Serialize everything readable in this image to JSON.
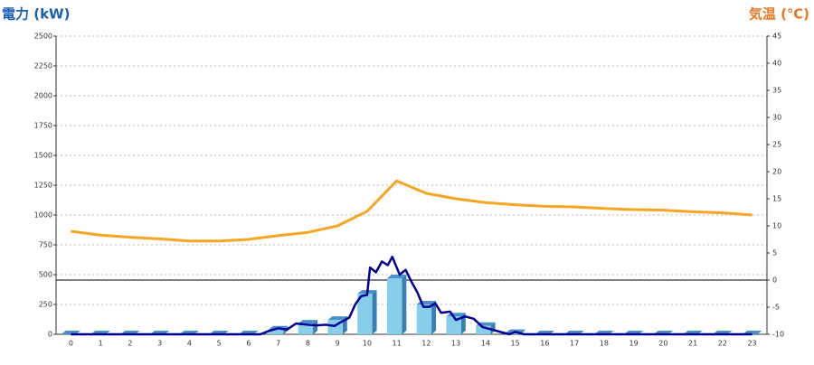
{
  "chart_data": {
    "type": "bar",
    "ylabel": "電力 (kW)",
    "y2label": "気温 (℃)",
    "categories": [
      "0",
      "1",
      "2",
      "3",
      "4",
      "5",
      "6",
      "7",
      "8",
      "9",
      "10",
      "11",
      "12",
      "13",
      "14",
      "15",
      "16",
      "17",
      "18",
      "19",
      "20",
      "21",
      "22",
      "23"
    ],
    "ylim": [
      0,
      2500
    ],
    "yticks": [
      0,
      250,
      500,
      750,
      1000,
      1250,
      1500,
      1750,
      2000,
      2250,
      2500
    ],
    "y2lim": [
      -10,
      45
    ],
    "y2ticks": [
      -10,
      -5,
      0,
      5,
      10,
      15,
      20,
      25,
      30,
      35,
      40,
      45
    ],
    "grid": true,
    "series": [
      {
        "type": "bar",
        "color": "#87ceeb",
        "values": [
          0,
          0,
          0,
          0,
          0,
          0,
          0,
          40,
          90,
          120,
          340,
          470,
          250,
          150,
          70,
          10,
          0,
          0,
          0,
          0,
          0,
          0,
          0,
          0
        ]
      },
      {
        "type": "line",
        "color": "#000099",
        "x": [
          0,
          6.4,
          6.7,
          7,
          7.3,
          7.6,
          8,
          8.3,
          8.6,
          8.9,
          9.1,
          9.4,
          9.6,
          9.8,
          10,
          10.1,
          10.3,
          10.5,
          10.7,
          10.85,
          11,
          11.1,
          11.3,
          11.5,
          11.7,
          11.9,
          12.1,
          12.3,
          12.5,
          12.8,
          13,
          13.3,
          13.6,
          13.9,
          14.2,
          14.5,
          14.8,
          15,
          15.3,
          23
        ],
        "values": [
          0,
          0,
          30,
          50,
          40,
          90,
          80,
          75,
          80,
          70,
          100,
          140,
          250,
          320,
          330,
          560,
          520,
          610,
          580,
          650,
          560,
          500,
          540,
          440,
          350,
          230,
          230,
          260,
          180,
          190,
          120,
          150,
          130,
          60,
          40,
          20,
          0,
          20,
          0,
          0
        ]
      },
      {
        "type": "line",
        "axis": "y2",
        "color": "#f5a623",
        "values": [
          9,
          8.3,
          7.9,
          7.6,
          7.2,
          7.2,
          7.5,
          8.2,
          8.8,
          10,
          12.7,
          18.3,
          16,
          15,
          14.3,
          13.9,
          13.6,
          13.5,
          13.2,
          13,
          12.9,
          12.6,
          12.4,
          12
        ]
      }
    ]
  }
}
